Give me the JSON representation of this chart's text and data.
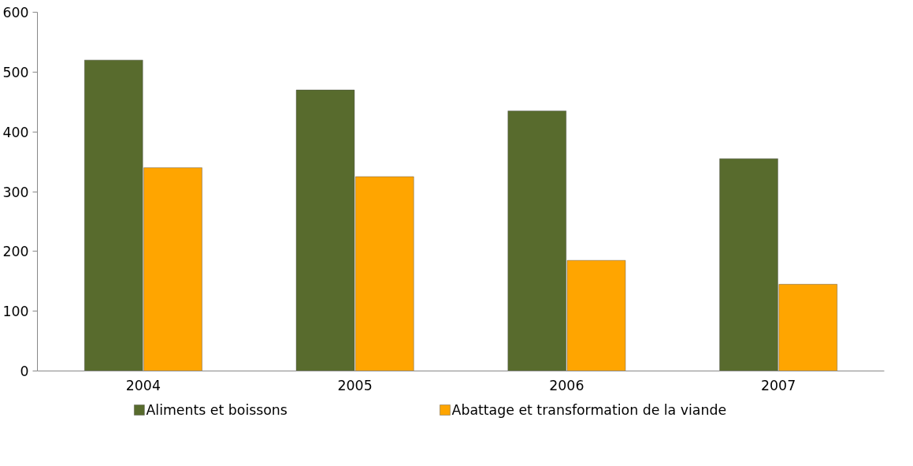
{
  "chart_data": {
    "type": "bar",
    "categories": [
      "2004",
      "2005",
      "2006",
      "2007"
    ],
    "series": [
      {
        "name": "Aliments et boissons",
        "color": "#586b2d",
        "values": [
          520,
          470,
          435,
          355
        ]
      },
      {
        "name": "Abattage et transformation de la viande",
        "color": "#ffa500",
        "values": [
          340,
          325,
          185,
          145
        ]
      }
    ],
    "ylim": [
      0,
      600
    ],
    "yticks": [
      0,
      100,
      200,
      300,
      400,
      500,
      600
    ],
    "grid": false,
    "legend": "bottom"
  }
}
